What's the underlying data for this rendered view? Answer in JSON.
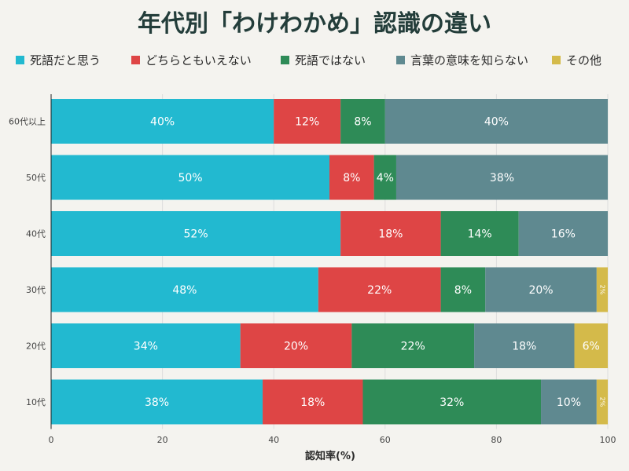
{
  "chart_data": {
    "type": "bar",
    "orientation": "horizontal",
    "stacked": true,
    "title": "年代別「わけわかめ」認識の違い",
    "xlabel": "認知率(%)",
    "ylabel": "",
    "xlim": [
      0,
      100
    ],
    "x_ticks": [
      "0",
      "20",
      "40",
      "60",
      "80",
      "100"
    ],
    "grid": true,
    "legend_position": "top",
    "categories": [
      "60代以上",
      "50代",
      "40代",
      "30代",
      "20代",
      "10代"
    ],
    "series": [
      {
        "name": "死語だと思う",
        "color": "#22b9d0",
        "values": [
          40,
          50,
          52,
          48,
          34,
          38
        ],
        "labels": [
          "40%",
          "50%",
          "52%",
          "48%",
          "34%",
          "38%"
        ]
      },
      {
        "name": "どちらともいえない",
        "color": "#de4545",
        "values": [
          12,
          8,
          18,
          22,
          20,
          18
        ],
        "labels": [
          "12%",
          "8%",
          "18%",
          "22%",
          "20%",
          "18%"
        ]
      },
      {
        "name": "死語ではない",
        "color": "#2e8b57",
        "values": [
          8,
          4,
          14,
          8,
          22,
          32
        ],
        "labels": [
          "8%",
          "4%",
          "14%",
          "8%",
          "22%",
          "32%"
        ]
      },
      {
        "name": "言葉の意味を知らない",
        "color": "#5f8990",
        "values": [
          40,
          38,
          16,
          20,
          18,
          10
        ],
        "labels": [
          "40%",
          "38%",
          "16%",
          "20%",
          "18%",
          "10%"
        ]
      },
      {
        "name": "その他",
        "color": "#d4ba4a",
        "values": [
          0,
          0,
          0,
          2,
          6,
          2
        ],
        "labels": [
          "",
          "",
          "",
          "2%",
          "6%",
          "2%"
        ]
      }
    ]
  }
}
